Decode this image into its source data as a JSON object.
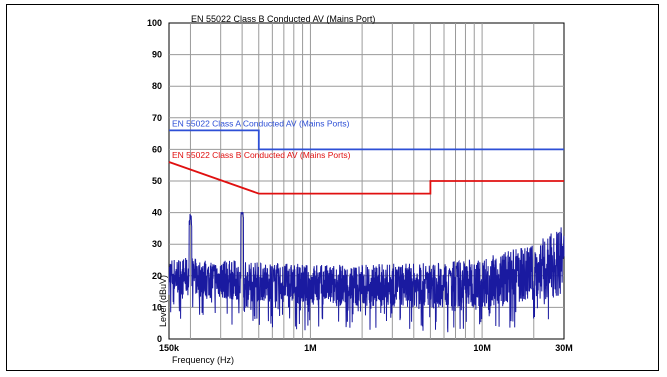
{
  "chart_data": {
    "type": "line",
    "title": "EN 55022 Class B Conducted AV (Mains Port)",
    "xlabel": "Frequency (Hz)",
    "ylabel": "Level (dBuV)",
    "x_scale": "log",
    "xlim": [
      150000,
      30000000
    ],
    "ylim": [
      0,
      100
    ],
    "y_ticks": [
      0,
      10,
      20,
      30,
      40,
      50,
      60,
      70,
      80,
      90,
      100
    ],
    "x_tick_labels": [
      {
        "x": 150000,
        "label": "150k"
      },
      {
        "x": 1000000,
        "label": "1M"
      },
      {
        "x": 10000000,
        "label": "10M"
      },
      {
        "x": 30000000,
        "label": "30M"
      }
    ],
    "grid": true,
    "limit_lines": [
      {
        "name": "EN 55022 Class A Conducted AV (Mains Ports)",
        "color": "#2d4fd6",
        "points": [
          [
            150000,
            66
          ],
          [
            500000,
            66
          ],
          [
            500000,
            60
          ],
          [
            30000000,
            60
          ]
        ]
      },
      {
        "name": "EN 55022 Class B Conducted AV (Mains Ports)",
        "color": "#e01010",
        "points": [
          [
            150000,
            56
          ],
          [
            500000,
            46
          ],
          [
            5000000,
            46
          ],
          [
            5000000,
            50
          ],
          [
            30000000,
            50
          ]
        ]
      }
    ],
    "series": [
      {
        "color": "#1a1aa0",
        "baseline": [
          [
            150000,
            20
          ],
          [
            1000000,
            17
          ],
          [
            5000000,
            17
          ],
          [
            10000000,
            18
          ],
          [
            20000000,
            21
          ],
          [
            30000000,
            25
          ]
        ],
        "noise_band": [
          [
            150000,
            6
          ],
          [
            5000000,
            7
          ],
          [
            20000000,
            9
          ],
          [
            30000000,
            11
          ]
        ],
        "peaks": [
          {
            "x": 200000,
            "y": 39
          },
          {
            "x": 400000,
            "y": 41
          },
          {
            "x": 6500000,
            "y": 22
          }
        ]
      }
    ]
  }
}
